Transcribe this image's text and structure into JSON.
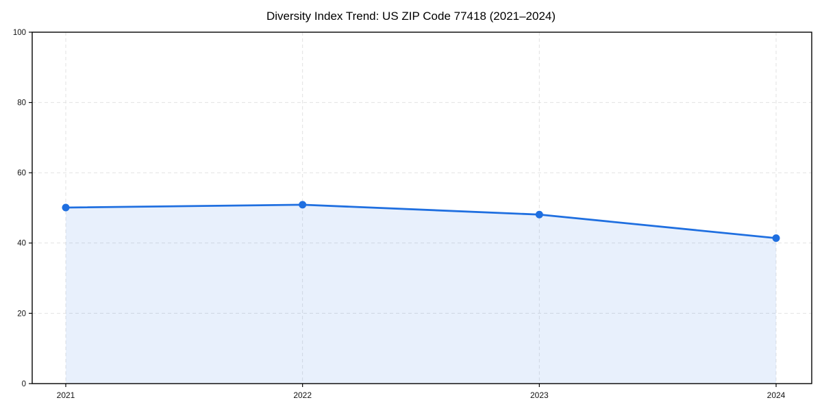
{
  "title": "Diversity Index Trend: US ZIP Code 77418 (2021–2024)",
  "chart_data": {
    "type": "area",
    "title": "Diversity Index Trend: US ZIP Code 77418 (2021–2024)",
    "categories": [
      "2021",
      "2022",
      "2023",
      "2024"
    ],
    "series": [
      {
        "name": "Diversity Index",
        "values": [
          50.1,
          50.9,
          48.1,
          41.4
        ]
      }
    ],
    "xlabel": "",
    "ylabel": "",
    "ylim": [
      0,
      100
    ],
    "yticks": [
      0,
      20,
      40,
      60,
      80,
      100
    ],
    "grid": "dashed-both-axes",
    "legend_position": "none",
    "colors": {
      "line": "#1f6fe0",
      "marker": "#1f6fe0",
      "fill": "rgba(31,111,224,0.10)",
      "gridline": "#e2e2e2",
      "spine": "#000000",
      "tick": "#000000",
      "tick_label": "#111111",
      "background": "#ffffff"
    }
  }
}
